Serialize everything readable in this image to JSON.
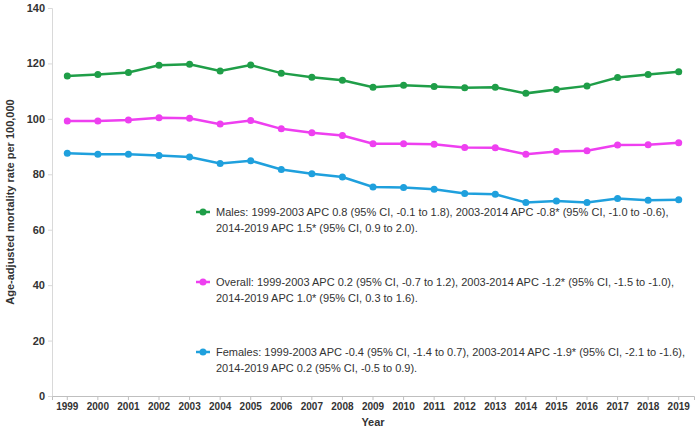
{
  "chart_data": {
    "type": "line",
    "x_label": "Year",
    "y_label": "Age-adjusted mortality rate per 100,000",
    "categories": [
      "1999",
      "2000",
      "2001",
      "2002",
      "2003",
      "2004",
      "2005",
      "2006",
      "2007",
      "2008",
      "2009",
      "2010",
      "2011",
      "2012",
      "2013",
      "2014",
      "2015",
      "2016",
      "2017",
      "2018",
      "2019"
    ],
    "ylim": [
      0,
      140
    ],
    "yticks": [
      0,
      20,
      40,
      60,
      80,
      100,
      120,
      140
    ],
    "grid": false,
    "marker": "circle",
    "series": [
      {
        "name": "Males: 1999-2003 APC 0.8 (95% CI, -0.1 to 1.8), 2003-2014 APC -0.8* (95% CI, -1.0 to -0.6), 2014-2019 APC 1.5* (95% CI, 0.9 to 2.0).",
        "color": "#1f9e48",
        "values": [
          115.5,
          116.0,
          116.7,
          119.3,
          119.7,
          117.3,
          119.4,
          116.5,
          115.0,
          113.9,
          111.4,
          112.1,
          111.7,
          111.2,
          111.4,
          109.2,
          110.6,
          111.9,
          114.9,
          116.0,
          117.0
        ]
      },
      {
        "name": "Overall: 1999-2003 APC 0.2 (95% CI, -0.7 to 1.2), 2003-2014 APC -1.2* (95% CI, -1.5 to -1.0), 2014-2019 APC 1.0* (95% CI, 0.3 to 1.6).",
        "color": "#ee3ff0",
        "values": [
          99.2,
          99.2,
          99.6,
          100.4,
          100.2,
          98.1,
          99.4,
          96.4,
          95.0,
          94.0,
          91.0,
          91.0,
          90.8,
          89.7,
          89.6,
          87.2,
          88.2,
          88.5,
          90.6,
          90.7,
          91.4
        ]
      },
      {
        "name": "Females: 1999-2003 APC -0.4 (95% CI, -1.4 to 0.7), 2003-2014 APC -1.9* (95% CI, -2.1 to -1.6), 2014-2019 APC 0.2 (95% CI, -0.5 to 0.9).",
        "color": "#1fa0dd",
        "values": [
          87.6,
          87.2,
          87.2,
          86.8,
          86.2,
          83.9,
          84.9,
          81.7,
          80.2,
          79.0,
          75.4,
          75.2,
          74.6,
          73.1,
          72.8,
          69.8,
          70.4,
          69.8,
          71.3,
          70.6,
          70.8
        ]
      }
    ]
  }
}
